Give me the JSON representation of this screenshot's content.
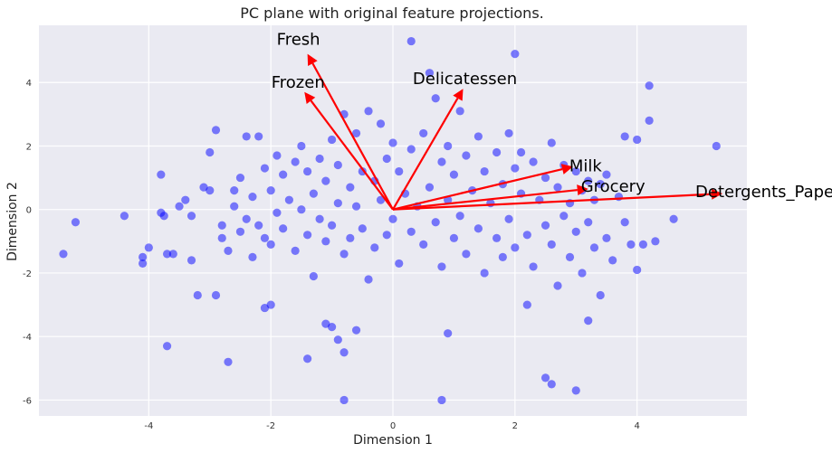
{
  "chart_data": {
    "type": "scatter",
    "title": "PC plane with original feature projections.",
    "xlabel": "Dimension 1",
    "ylabel": "Dimension 2",
    "xlim": [
      -5.8,
      5.8
    ],
    "ylim": [
      -6.5,
      5.8
    ],
    "xticks": [
      -4,
      -2,
      0,
      2,
      4
    ],
    "yticks": [
      -6,
      -4,
      -2,
      0,
      2,
      4
    ],
    "grid": true,
    "background_color": "#eaeaf2",
    "grid_color": "#ffffff",
    "point_color": "#0000ff",
    "arrow_color": "#ff0000",
    "points": [
      [
        -5.4,
        -1.4
      ],
      [
        -5.2,
        -0.4
      ],
      [
        -4.4,
        -0.2
      ],
      [
        -4.1,
        -1.5
      ],
      [
        -4.1,
        -1.7
      ],
      [
        -4.0,
        -1.2
      ],
      [
        -3.8,
        1.1
      ],
      [
        -3.8,
        -0.1
      ],
      [
        -3.75,
        -0.2
      ],
      [
        -3.7,
        -1.4
      ],
      [
        -3.7,
        -4.3
      ],
      [
        -3.6,
        -1.4
      ],
      [
        -3.5,
        0.1
      ],
      [
        -3.4,
        0.3
      ],
      [
        -3.3,
        -1.6
      ],
      [
        -3.2,
        -2.7
      ],
      [
        -3.3,
        -0.2
      ],
      [
        -3.1,
        0.7
      ],
      [
        -3.0,
        1.8
      ],
      [
        -3.0,
        0.6
      ],
      [
        -2.9,
        -2.7
      ],
      [
        -2.9,
        2.5
      ],
      [
        -2.8,
        -0.5
      ],
      [
        -2.8,
        -0.9
      ],
      [
        -2.7,
        -1.3
      ],
      [
        -2.7,
        -4.8
      ],
      [
        -2.6,
        0.6
      ],
      [
        -2.5,
        1.0
      ],
      [
        -2.6,
        0.1
      ],
      [
        -2.5,
        -0.7
      ],
      [
        -2.4,
        2.3
      ],
      [
        -2.4,
        -0.3
      ],
      [
        -2.3,
        -1.5
      ],
      [
        -2.3,
        0.4
      ],
      [
        -2.2,
        2.3
      ],
      [
        -2.2,
        -0.5
      ],
      [
        -2.1,
        1.3
      ],
      [
        -2.1,
        -0.9
      ],
      [
        -2.0,
        0.6
      ],
      [
        -2.0,
        -1.1
      ],
      [
        -2.0,
        -3.0
      ],
      [
        -1.9,
        1.7
      ],
      [
        -1.9,
        -0.1
      ],
      [
        -1.8,
        1.1
      ],
      [
        -1.8,
        -0.6
      ],
      [
        -1.7,
        0.3
      ],
      [
        -1.6,
        1.5
      ],
      [
        -1.6,
        -1.3
      ],
      [
        -1.5,
        2.0
      ],
      [
        -1.5,
        0.0
      ],
      [
        -1.4,
        -0.8
      ],
      [
        -1.4,
        1.2
      ],
      [
        -1.3,
        -2.1
      ],
      [
        -1.3,
        0.5
      ],
      [
        -1.2,
        1.6
      ],
      [
        -1.2,
        -0.3
      ],
      [
        -1.1,
        0.9
      ],
      [
        -1.1,
        -1.0
      ],
      [
        -1.0,
        2.2
      ],
      [
        -1.0,
        -0.5
      ],
      [
        -0.9,
        1.4
      ],
      [
        -0.9,
        0.2
      ],
      [
        -0.8,
        3.0
      ],
      [
        -0.8,
        -1.4
      ],
      [
        -0.7,
        0.7
      ],
      [
        -0.7,
        -0.9
      ],
      [
        -0.6,
        2.4
      ],
      [
        -0.6,
        0.1
      ],
      [
        -0.5,
        1.2
      ],
      [
        -0.5,
        -0.6
      ],
      [
        -0.4,
        3.1
      ],
      [
        -0.4,
        -2.2
      ],
      [
        -0.3,
        0.9
      ],
      [
        -0.3,
        -1.2
      ],
      [
        -0.2,
        2.7
      ],
      [
        -0.2,
        0.3
      ],
      [
        -0.1,
        1.6
      ],
      [
        -0.1,
        -0.8
      ],
      [
        0.0,
        2.1
      ],
      [
        0.0,
        -0.3
      ],
      [
        0.1,
        1.2
      ],
      [
        0.1,
        -1.7
      ],
      [
        0.2,
        0.5
      ],
      [
        0.3,
        -0.7
      ],
      [
        0.3,
        1.9
      ],
      [
        0.4,
        0.1
      ],
      [
        0.5,
        2.4
      ],
      [
        0.5,
        -1.1
      ],
      [
        0.6,
        4.3
      ],
      [
        0.6,
        0.7
      ],
      [
        0.7,
        -0.4
      ],
      [
        0.7,
        3.5
      ],
      [
        0.8,
        1.5
      ],
      [
        0.8,
        -1.8
      ],
      [
        0.9,
        0.3
      ],
      [
        0.9,
        2.0
      ],
      [
        1.0,
        -0.9
      ],
      [
        1.0,
        1.1
      ],
      [
        1.1,
        3.1
      ],
      [
        1.1,
        -0.2
      ],
      [
        1.2,
        1.7
      ],
      [
        1.2,
        -1.4
      ],
      [
        1.3,
        0.6
      ],
      [
        1.4,
        2.3
      ],
      [
        1.4,
        -0.6
      ],
      [
        1.5,
        1.2
      ],
      [
        1.5,
        -2.0
      ],
      [
        1.6,
        0.2
      ],
      [
        1.7,
        1.8
      ],
      [
        1.7,
        -0.9
      ],
      [
        1.8,
        0.8
      ],
      [
        1.8,
        -1.5
      ],
      [
        1.9,
        2.4
      ],
      [
        1.9,
        -0.3
      ],
      [
        2.0,
        1.3
      ],
      [
        2.0,
        -1.2
      ],
      [
        2.1,
        0.5
      ],
      [
        2.1,
        1.8
      ],
      [
        2.2,
        -0.8
      ],
      [
        2.3,
        1.5
      ],
      [
        2.3,
        -1.8
      ],
      [
        2.4,
        0.3
      ],
      [
        2.5,
        1.0
      ],
      [
        2.5,
        -0.5
      ],
      [
        2.6,
        2.1
      ],
      [
        2.6,
        -1.1
      ],
      [
        2.7,
        0.7
      ],
      [
        2.7,
        -2.4
      ],
      [
        2.8,
        1.4
      ],
      [
        2.8,
        -0.2
      ],
      [
        2.9,
        0.2
      ],
      [
        2.9,
        -1.5
      ],
      [
        3.0,
        1.2
      ],
      [
        3.0,
        -0.7
      ],
      [
        3.1,
        0.6
      ],
      [
        3.1,
        -2.0
      ],
      [
        3.2,
        0.9
      ],
      [
        3.2,
        -0.4
      ],
      [
        3.3,
        -1.2
      ],
      [
        3.3,
        0.3
      ],
      [
        3.4,
        0.8
      ],
      [
        3.4,
        -2.7
      ],
      [
        3.5,
        -0.9
      ],
      [
        3.5,
        1.1
      ],
      [
        3.6,
        -1.6
      ],
      [
        3.7,
        0.4
      ],
      [
        3.8,
        2.3
      ],
      [
        3.8,
        -0.4
      ],
      [
        3.9,
        -1.1
      ],
      [
        4.0,
        2.2
      ],
      [
        4.0,
        -1.9
      ],
      [
        4.1,
        -1.1
      ],
      [
        4.2,
        3.9
      ],
      [
        4.2,
        2.8
      ],
      [
        4.3,
        -1.0
      ],
      [
        4.6,
        -0.3
      ],
      [
        5.3,
        2.0
      ],
      [
        0.3,
        5.3
      ],
      [
        2.0,
        4.9
      ],
      [
        0.8,
        -6.0
      ],
      [
        -0.8,
        -6.0
      ],
      [
        2.5,
        -5.3
      ],
      [
        2.6,
        -5.5
      ],
      [
        3.0,
        -5.7
      ],
      [
        -1.4,
        -4.7
      ],
      [
        -0.8,
        -4.5
      ],
      [
        -0.9,
        -4.1
      ],
      [
        -1.0,
        -3.7
      ],
      [
        -1.1,
        -3.6
      ],
      [
        -0.6,
        -3.8
      ],
      [
        -2.1,
        -3.1
      ],
      [
        0.9,
        -3.9
      ],
      [
        3.2,
        -3.5
      ],
      [
        2.2,
        -3.0
      ]
    ],
    "vectors": [
      {
        "label": "Fresh",
        "x": -1.4,
        "y": 4.9
      },
      {
        "label": "Frozen",
        "x": -1.45,
        "y": 3.7
      },
      {
        "label": "Delicatessen",
        "x": 1.15,
        "y": 3.8
      },
      {
        "label": "Milk",
        "x": 2.95,
        "y": 1.35
      },
      {
        "label": "Grocery",
        "x": 3.2,
        "y": 0.65
      },
      {
        "label": "Detergents_Paper",
        "x": 5.4,
        "y": 0.5
      }
    ]
  }
}
